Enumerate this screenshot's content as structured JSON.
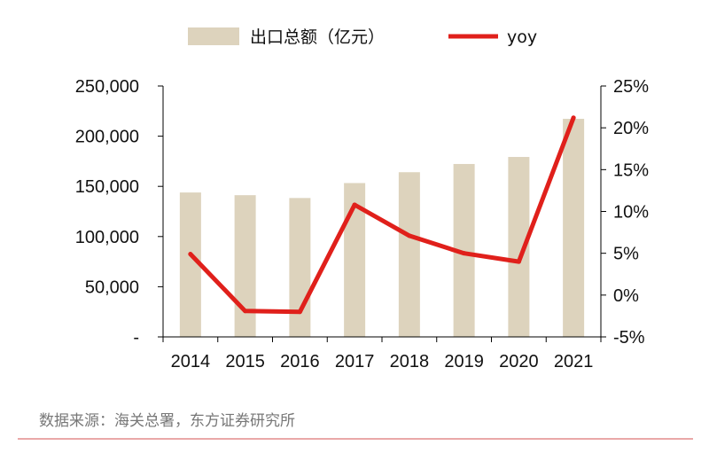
{
  "chart_data": {
    "type": "bar+line",
    "categories": [
      "2014",
      "2015",
      "2016",
      "2017",
      "2018",
      "2019",
      "2020",
      "2021"
    ],
    "series": [
      {
        "name": "出口总额（亿元）",
        "type": "bar",
        "axis": "left",
        "color": "#ddd3bd",
        "values": [
          143900,
          141200,
          138400,
          153300,
          164100,
          172300,
          179300,
          217300
        ]
      },
      {
        "name": "yoy",
        "type": "line",
        "axis": "right",
        "color": "#e0201b",
        "values": [
          4.9,
          -1.9,
          -2.0,
          10.8,
          7.1,
          5.0,
          4.0,
          21.2
        ]
      }
    ],
    "y_left": {
      "ylim": [
        0,
        250000
      ],
      "ticks": [
        "-",
        "50,000",
        "100,000",
        "150,000",
        "200,000",
        "250,000"
      ]
    },
    "y_right": {
      "ylim": [
        -5,
        25
      ],
      "ticks": [
        "-5%",
        "0%",
        "5%",
        "10%",
        "15%",
        "20%",
        "25%"
      ]
    },
    "legend_position": "top",
    "grid": false
  },
  "source_note": "数据来源：海关总署，东方证券研究所",
  "colors": {
    "bar": "#ddd3bd",
    "line": "#e0201b",
    "divider": "#e38b8b"
  }
}
